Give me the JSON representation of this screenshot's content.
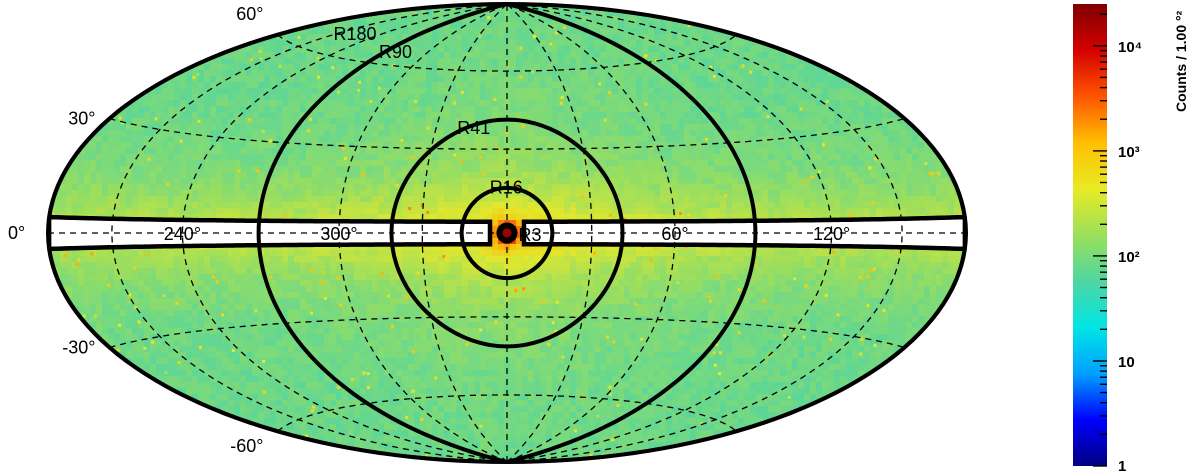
{
  "chart_data": {
    "type": "heatmap",
    "projection": "hammer-aitoff",
    "coordinates": "galactic",
    "colormap": [
      "#00007f",
      "#0000ff",
      "#00a0ff",
      "#00e5e5",
      "#4fd6a0",
      "#9be05a",
      "#e8ea24",
      "#ffbf00",
      "#ff5500",
      "#d40000",
      "#7f0000"
    ],
    "colorscale": "log",
    "zlim": [
      1,
      25000
    ],
    "colorbar": {
      "label": "Counts / 1.00 °²",
      "ticks": [
        {
          "value": 10000,
          "label": "10⁴"
        },
        {
          "value": 1000,
          "label": "10³"
        },
        {
          "value": 100,
          "label": "10²"
        },
        {
          "value": 10,
          "label": "10"
        },
        {
          "value": 1,
          "label": "1"
        }
      ]
    },
    "latitude_labels": [
      {
        "b": 60,
        "text": "60°"
      },
      {
        "b": 30,
        "text": "30°"
      },
      {
        "b": 0,
        "text": "0°"
      },
      {
        "b": -30,
        "text": "-30°"
      },
      {
        "b": -60,
        "text": "-60°"
      }
    ],
    "longitude_labels": [
      {
        "l": 120,
        "text": "120°"
      },
      {
        "l": 60,
        "text": "60°"
      },
      {
        "l": -60,
        "text": "300°"
      },
      {
        "l": -120,
        "text": "240°"
      }
    ],
    "graticule": {
      "lat_step": 30,
      "lon_step": 30,
      "style": "dashed"
    },
    "regions": [
      {
        "name": "R3",
        "radius_deg": 3
      },
      {
        "name": "R16",
        "radius_deg": 16
      },
      {
        "name": "R41",
        "radius_deg": 41
      },
      {
        "name": "R90",
        "radius_deg": 90
      },
      {
        "name": "R180",
        "radius_deg": 180
      }
    ],
    "plane_mask": {
      "abs_b_max_deg": 4,
      "abs_l_min_deg": 6,
      "color": "#ffffff"
    },
    "intensity_profile": {
      "description": "brightest at Galactic Center, enhanced along plane and inner-galaxy bubbles",
      "peak_counts_at_center": 20000,
      "typical_high_latitude_counts": 80,
      "typical_plane_counts": 500
    }
  }
}
